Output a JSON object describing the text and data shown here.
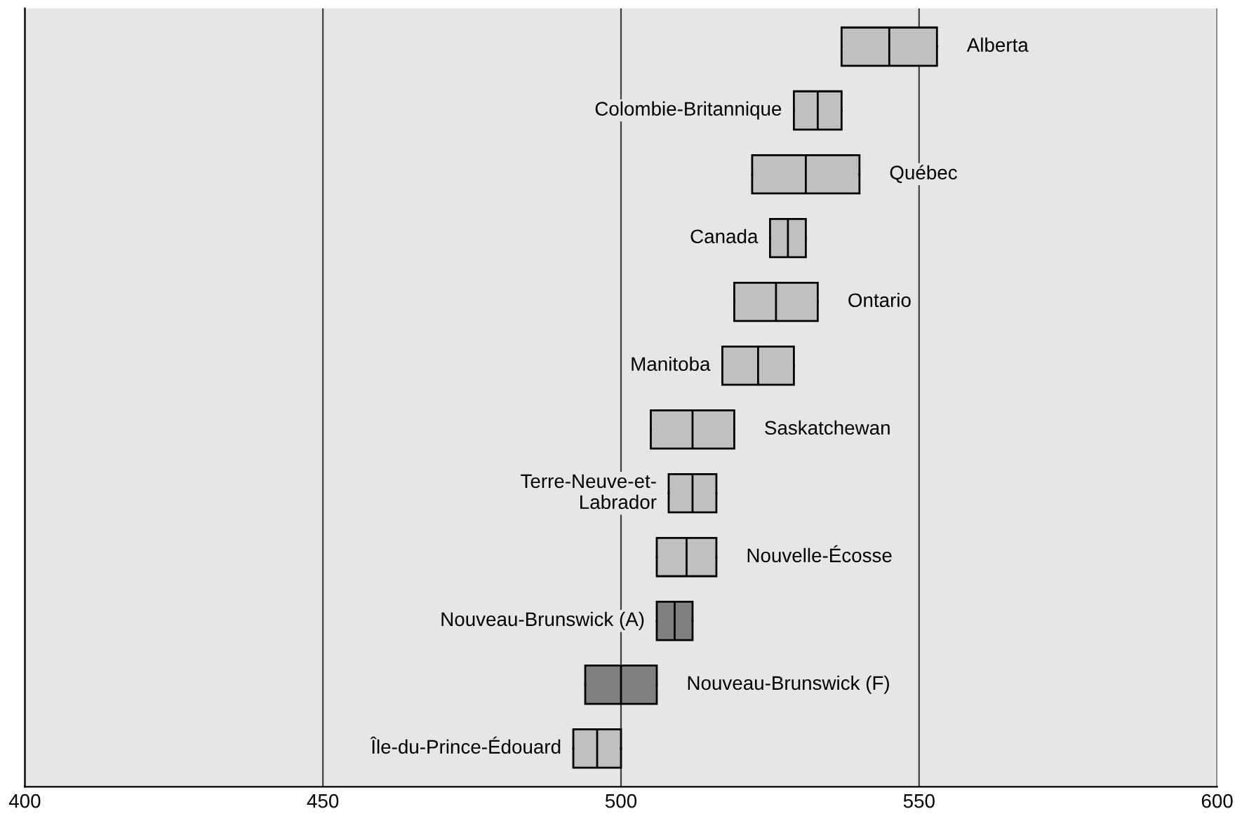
{
  "chart_data": {
    "type": "box",
    "orientation": "horizontal",
    "categories": [
      "Alberta",
      "Colombie-Britannique",
      "Québec",
      "Canada",
      "Ontario",
      "Manitoba",
      "Saskatchewan",
      "Terre-Neuve-et-\nLabrador",
      "Nouvelle-Écosse",
      "Nouveau-Brunswick (A)",
      "Nouveau-Brunswick (F)",
      "Île-du-Prince-Édouard"
    ],
    "boxes": [
      {
        "low": 537,
        "q1": 537,
        "median": 545,
        "q3": 553,
        "high": 553
      },
      {
        "low": 529,
        "q1": 529,
        "median": 533,
        "q3": 537,
        "high": 537
      },
      {
        "low": 522,
        "q1": 522,
        "median": 531,
        "q3": 540,
        "high": 540
      },
      {
        "low": 525,
        "q1": 525,
        "median": 528,
        "q3": 531,
        "high": 531
      },
      {
        "low": 519,
        "q1": 519,
        "median": 526,
        "q3": 533,
        "high": 533
      },
      {
        "low": 517,
        "q1": 517,
        "median": 523,
        "q3": 529,
        "high": 529
      },
      {
        "low": 505,
        "q1": 505,
        "median": 512,
        "q3": 519,
        "high": 519
      },
      {
        "low": 508,
        "q1": 508,
        "median": 512,
        "q3": 516,
        "high": 516
      },
      {
        "low": 506,
        "q1": 506,
        "median": 511,
        "q3": 516,
        "high": 516
      },
      {
        "low": 506,
        "q1": 506,
        "median": 509,
        "q3": 512,
        "high": 512
      },
      {
        "low": 494,
        "q1": 494,
        "median": 500,
        "q3": 506,
        "high": 506
      },
      {
        "low": 492,
        "q1": 492,
        "median": 496,
        "q3": 500,
        "high": 500
      }
    ],
    "colors": [
      "#c0c0c0",
      "#c0c0c0",
      "#c0c0c0",
      "#c0c0c0",
      "#c0c0c0",
      "#c0c0c0",
      "#c0c0c0",
      "#c0c0c0",
      "#c0c0c0",
      "#808080",
      "#808080",
      "#c0c0c0"
    ],
    "xlim": [
      400,
      600
    ],
    "xticks": [
      400,
      450,
      500,
      550,
      600
    ],
    "grid": "x",
    "tick_labels": "x"
  }
}
